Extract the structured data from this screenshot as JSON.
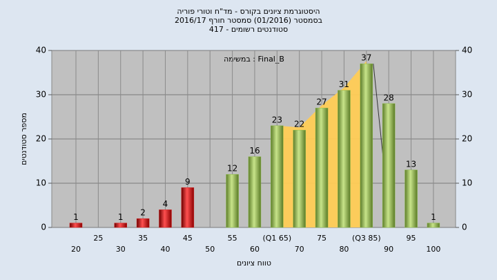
{
  "chart_data": {
    "type": "bar",
    "title": [
      "היסטוגרמת ציונים בקורס - מד\"ח וטורי פוריה",
      "בסמסטר  (01/2016)  סמסטר חורף 2016/17",
      "סטודנטים רשומים - 417"
    ],
    "annotation": "במשימה : Final_B",
    "x_label": "טווח ציונים",
    "y_label": "מספר סטודנטים",
    "categories": [
      "20",
      "25",
      "30",
      "35",
      "40",
      "45",
      "50",
      "55",
      "60",
      "(Q1 65)",
      "70",
      "75",
      "80",
      "(Q3 85)",
      "90",
      "95",
      "100"
    ],
    "values": [
      1,
      null,
      1,
      2,
      4,
      9,
      null,
      12,
      16,
      23,
      22,
      27,
      31,
      37,
      28,
      13,
      1
    ],
    "colors": [
      "#d42020",
      null,
      "#d42020",
      "#d42020",
      "#d42020",
      "#d42020",
      null,
      "#8dbb4a",
      "#8dbb4a",
      "#8dbb4a",
      "#8dbb4a",
      "#8dbb4a",
      "#8dbb4a",
      "#8dbb4a",
      "#8dbb4a",
      "#8dbb4a",
      "#8dbb4a"
    ],
    "ylim": [
      0,
      40
    ],
    "yticks": [
      0,
      10,
      20,
      30,
      40
    ],
    "y2lim": [
      0,
      40
    ],
    "y2ticks": [
      0,
      10,
      20,
      30,
      40
    ],
    "grid": true
  }
}
